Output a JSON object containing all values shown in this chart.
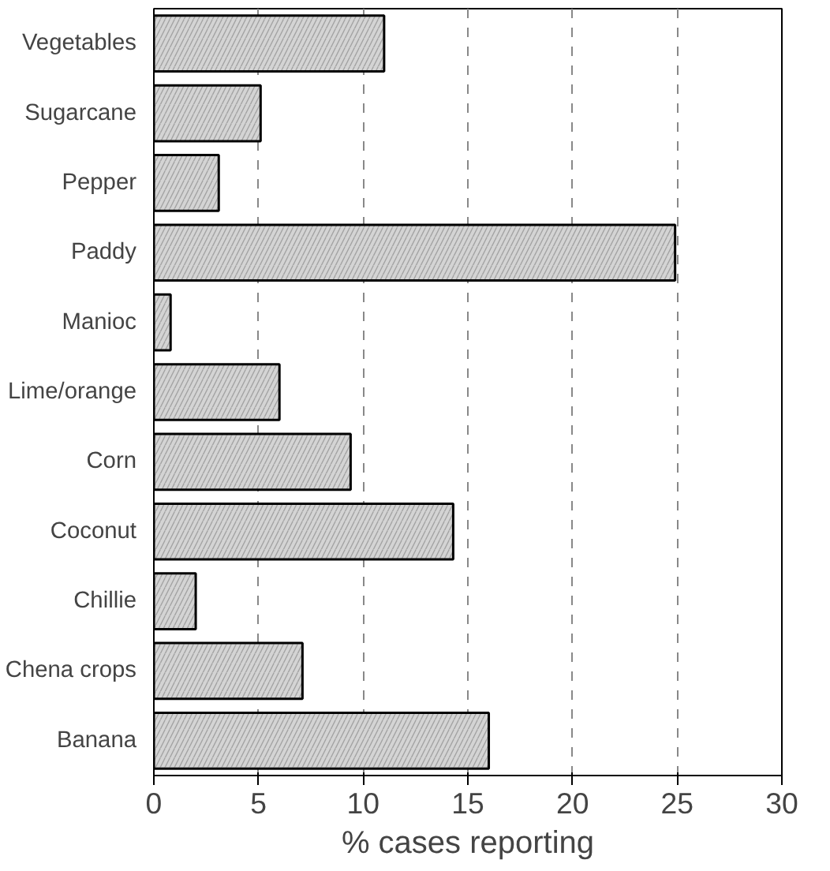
{
  "chart_data": {
    "type": "bar",
    "orientation": "horizontal",
    "xlabel": "% cases reporting",
    "categories": [
      "Vegetables",
      "Sugarcane",
      "Pepper",
      "Paddy",
      "Manioc",
      "Lime/orange",
      "Corn",
      "Coconut",
      "Chillie",
      "Chena crops",
      "Banana"
    ],
    "values": [
      11.0,
      5.1,
      3.1,
      24.9,
      0.8,
      6.0,
      9.4,
      14.3,
      2.0,
      7.1,
      16.0
    ],
    "color": "#d4d4d4",
    "xlim": [
      0,
      30
    ],
    "xticks": [
      0,
      5,
      10,
      15,
      20,
      25,
      30
    ],
    "grid": "x"
  }
}
